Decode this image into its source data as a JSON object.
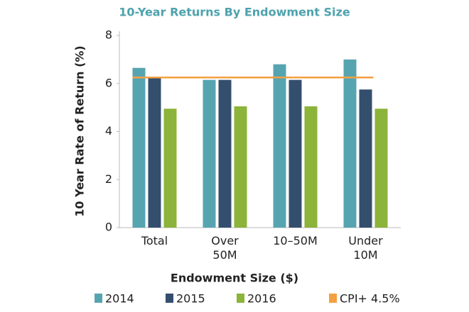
{
  "chart_data": {
    "type": "bar",
    "title": "10-Year Returns By Endowment Size",
    "x_label": "Endowment Size ($)",
    "y_label": "10 Year Rate of Return (%)",
    "categories": [
      "Total",
      "Over 50M",
      "10–50M",
      "Under 10M"
    ],
    "series": [
      {
        "name": "2014",
        "color": "#57a4b1",
        "values": [
          6.65,
          6.15,
          6.8,
          7.0
        ]
      },
      {
        "name": "2015",
        "color": "#344e6d",
        "values": [
          6.25,
          6.15,
          6.15,
          5.75
        ]
      },
      {
        "name": "2016",
        "color": "#8cb33a",
        "values": [
          4.95,
          5.05,
          5.05,
          4.95
        ]
      }
    ],
    "reference_line": {
      "name": "CPI+ 4.5%",
      "color": "#f4a040",
      "value": 6.25
    },
    "ylim": [
      0,
      8
    ],
    "yticks": [
      0,
      2,
      4,
      6,
      8
    ],
    "grid": false
  }
}
